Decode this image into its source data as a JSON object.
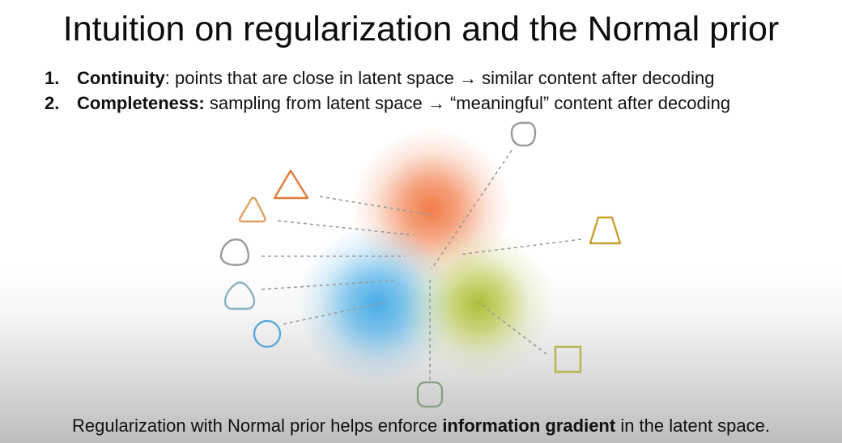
{
  "title": "Intuition on regularization and the Normal prior",
  "points": [
    {
      "number": "1.",
      "term": "Continuity",
      "text": ": points that are close in latent space → similar content after decoding"
    },
    {
      "number": "2.",
      "term": "Completeness:",
      "text": " sampling from latent space → “meaningful” content after decoding"
    }
  ],
  "footer": {
    "prefix": "Regularization with Normal prior helps enforce ",
    "emphasis": "information gradient",
    "suffix": " in the latent space."
  },
  "colors": {
    "orange_cluster": "#f0743c",
    "blue_cluster": "#3da8e6",
    "green_cluster": "#b4c43c",
    "triangle_orange": "#e07a3a",
    "triangle_light_orange": "#e0a060",
    "trapezoid_gold": "#c8a030",
    "rounded_gray": "#9a9a9a",
    "rounded_blue_gray": "#8ab0c8",
    "circle_blue": "#5aa8d8",
    "square_olive": "#b5b64a",
    "rounded_green_gray": "#8aa080",
    "connector_line": "#9b9b9b"
  }
}
